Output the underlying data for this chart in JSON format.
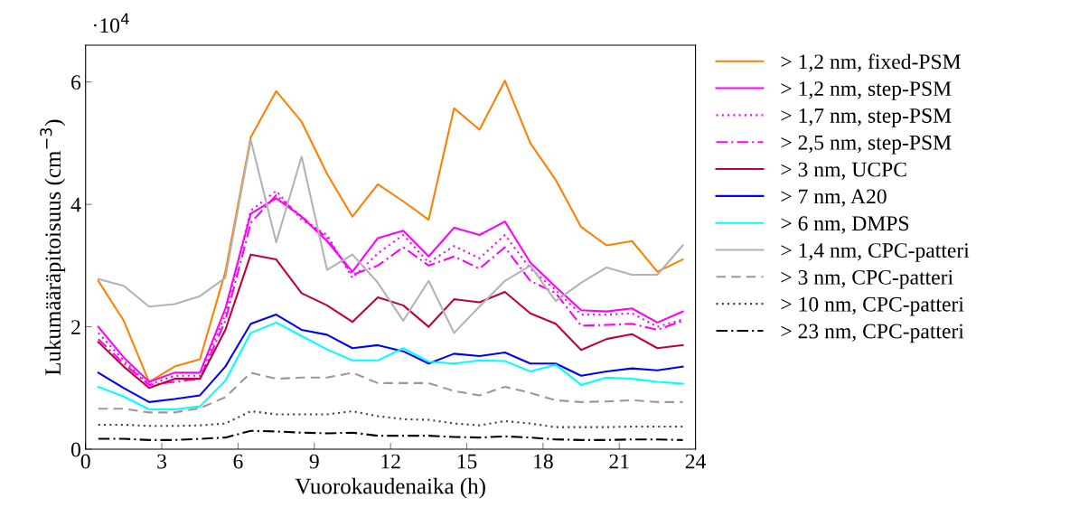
{
  "chart_data": {
    "type": "line",
    "xlabel": "Vuorokaudenaika (h)",
    "ylabel": "Lukumääräpitoisuus (cm$^{−3}$)",
    "annotations": [
      "·10$^{4}$"
    ],
    "x": [
      0.5,
      1.5,
      2.5,
      3.5,
      4.5,
      5.5,
      6.5,
      7.5,
      8.5,
      9.5,
      10.5,
      11.5,
      12.5,
      13.5,
      14.5,
      15.5,
      16.5,
      17.5,
      18.5,
      19.5,
      20.5,
      21.5,
      22.5,
      23.5
    ],
    "xlim": [
      0,
      24
    ],
    "xticks": [
      0,
      3,
      6,
      9,
      12,
      15,
      18,
      21,
      24
    ],
    "ylim": [
      0,
      6.6
    ],
    "yticks": [
      0,
      2,
      4,
      6
    ],
    "grid": false,
    "legend": "right",
    "series": [
      {
        "name": "> 1,2 nm, fixed-PSM",
        "color": "#ff8000",
        "line_style": "solid",
        "values": [
          2.75,
          2.1,
          1.1,
          1.35,
          1.47,
          2.9,
          5.1,
          5.85,
          5.35,
          4.5,
          3.8,
          4.33,
          4.05,
          3.75,
          5.57,
          5.22,
          6.02,
          5.0,
          4.4,
          3.63,
          3.33,
          3.4,
          2.9,
          3.1
        ]
      },
      {
        "name": "> 1,2 nm, step-PSM",
        "color": "#ff00ff",
        "line_style": "solid",
        "values": [
          2.0,
          1.5,
          1.1,
          1.25,
          1.25,
          2.3,
          3.85,
          4.1,
          3.8,
          3.4,
          2.9,
          3.45,
          3.57,
          3.15,
          3.62,
          3.5,
          3.72,
          3.05,
          2.65,
          2.27,
          2.25,
          2.3,
          2.07,
          2.25
        ]
      },
      {
        "name": "> 1,7 nm, step-PSM",
        "color": "#ff00ff",
        "line_style": "dotted",
        "values": [
          1.9,
          1.45,
          1.05,
          1.2,
          1.2,
          2.2,
          3.9,
          4.22,
          3.75,
          3.5,
          2.8,
          3.2,
          3.5,
          3.05,
          3.32,
          3.12,
          3.5,
          2.95,
          2.6,
          2.2,
          2.2,
          2.22,
          2.0,
          2.12
        ]
      },
      {
        "name": "> 2,5 nm, step-PSM",
        "color": "#ff00ff",
        "line_style": "dashdot",
        "values": [
          1.8,
          1.4,
          1.05,
          1.1,
          1.15,
          2.1,
          3.7,
          4.15,
          3.8,
          3.45,
          2.85,
          3.0,
          3.3,
          3.0,
          3.15,
          2.95,
          3.3,
          2.75,
          2.55,
          2.02,
          2.03,
          2.05,
          1.95,
          2.1
        ]
      },
      {
        "name": "> 3 nm, UCPC",
        "color": "#c0003c",
        "line_style": "solid",
        "values": [
          1.75,
          1.35,
          1.0,
          1.15,
          1.15,
          1.95,
          3.18,
          3.1,
          2.55,
          2.35,
          2.08,
          2.48,
          2.35,
          2.0,
          2.45,
          2.4,
          2.57,
          2.22,
          2.05,
          1.62,
          1.8,
          1.88,
          1.65,
          1.7
        ]
      },
      {
        "name": "> 7 nm, A20",
        "color": "#0000ff",
        "line_style": "solid",
        "values": [
          1.25,
          1.0,
          0.77,
          0.82,
          0.88,
          1.35,
          2.05,
          2.2,
          1.95,
          1.87,
          1.65,
          1.7,
          1.6,
          1.4,
          1.56,
          1.52,
          1.58,
          1.4,
          1.4,
          1.2,
          1.27,
          1.32,
          1.29,
          1.35
        ]
      },
      {
        "name": "> 6 nm, DMPS",
        "color": "#00ffff",
        "line_style": "solid",
        "values": [
          1.02,
          0.86,
          0.65,
          0.65,
          0.7,
          1.12,
          1.9,
          2.07,
          1.85,
          1.63,
          1.45,
          1.45,
          1.65,
          1.43,
          1.4,
          1.45,
          1.44,
          1.27,
          1.38,
          1.05,
          1.17,
          1.15,
          1.1,
          1.07
        ]
      },
      {
        "name": "> 1,4 nm, CPC-patteri",
        "color": "#b3b3b3",
        "line_style": "solid",
        "values": [
          2.78,
          2.67,
          2.33,
          2.37,
          2.5,
          2.8,
          5.05,
          3.38,
          4.78,
          2.93,
          3.18,
          2.72,
          2.1,
          2.75,
          1.9,
          2.33,
          2.75,
          3.0,
          2.42,
          2.72,
          2.97,
          2.85,
          2.85,
          3.33
        ]
      },
      {
        "name": "> 3 nm, CPC-patteri",
        "color": "#999999",
        "line_style": "dashed",
        "values": [
          0.66,
          0.66,
          0.6,
          0.6,
          0.67,
          0.85,
          1.25,
          1.15,
          1.17,
          1.17,
          1.25,
          1.08,
          1.08,
          1.08,
          0.95,
          0.88,
          1.02,
          0.92,
          0.8,
          0.77,
          0.78,
          0.8,
          0.77,
          0.77
        ]
      },
      {
        "name": "> 10 nm, CPC-patteri",
        "color": "#404040",
        "line_style": "dotted",
        "values": [
          0.4,
          0.4,
          0.38,
          0.38,
          0.39,
          0.42,
          0.62,
          0.57,
          0.57,
          0.57,
          0.62,
          0.54,
          0.49,
          0.48,
          0.42,
          0.39,
          0.46,
          0.42,
          0.36,
          0.36,
          0.36,
          0.37,
          0.37,
          0.37
        ]
      },
      {
        "name": "> 23 nm, CPC-patteri",
        "color": "#000000",
        "line_style": "dashdot",
        "values": [
          0.17,
          0.17,
          0.15,
          0.15,
          0.17,
          0.19,
          0.3,
          0.29,
          0.27,
          0.26,
          0.27,
          0.22,
          0.22,
          0.22,
          0.2,
          0.19,
          0.21,
          0.19,
          0.16,
          0.15,
          0.15,
          0.16,
          0.16,
          0.15
        ]
      }
    ]
  }
}
